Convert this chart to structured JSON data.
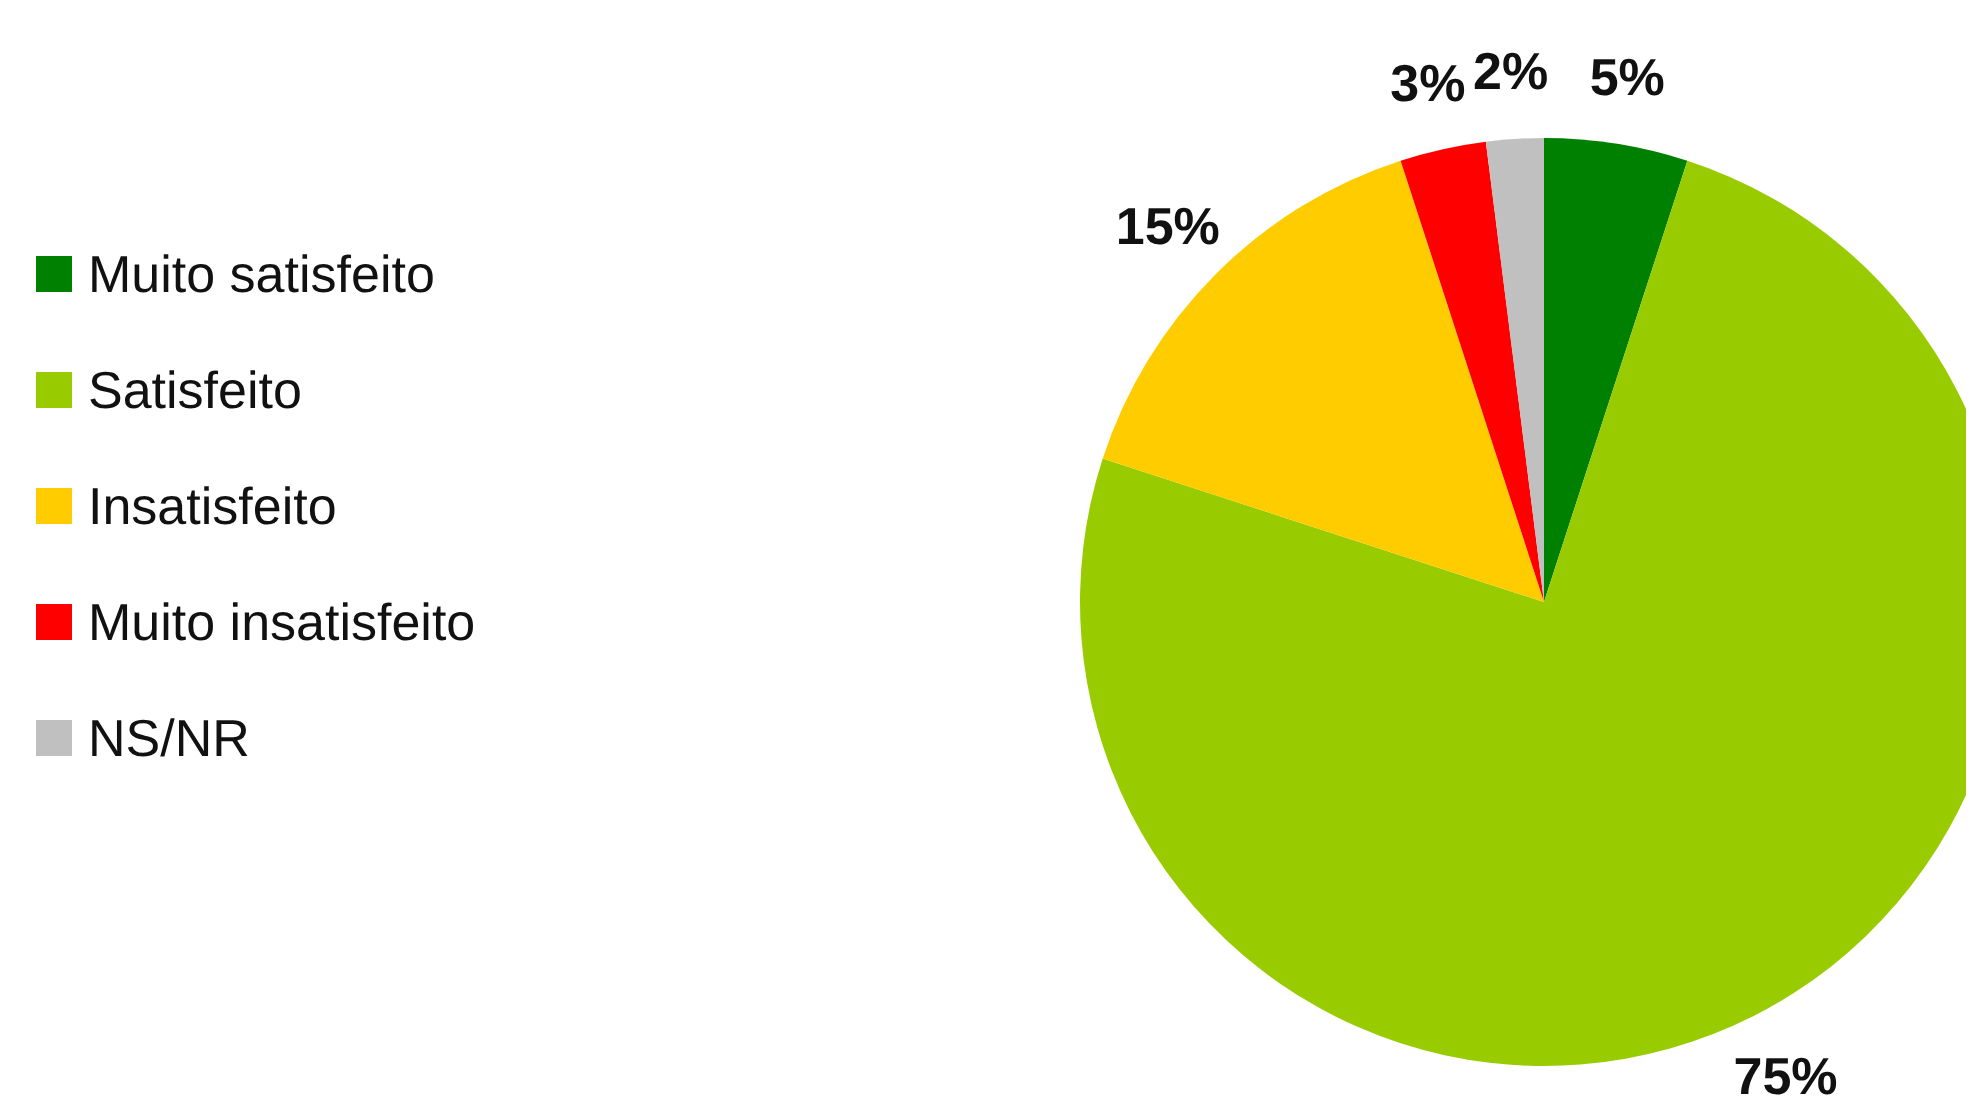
{
  "chart_data": {
    "type": "pie",
    "categories": [
      "Muito satisfeito",
      "Satisfeito",
      "Insatisfeito",
      "Muito insatisfeito",
      "NS/NR"
    ],
    "values": [
      5,
      75,
      15,
      3,
      2
    ],
    "colors": [
      "#008000",
      "#99cc00",
      "#ffcc00",
      "#ff0000",
      "#c0c0c0"
    ],
    "value_labels": [
      "5%",
      "75%",
      "15%",
      "3%",
      "2%"
    ],
    "legend": "left"
  }
}
